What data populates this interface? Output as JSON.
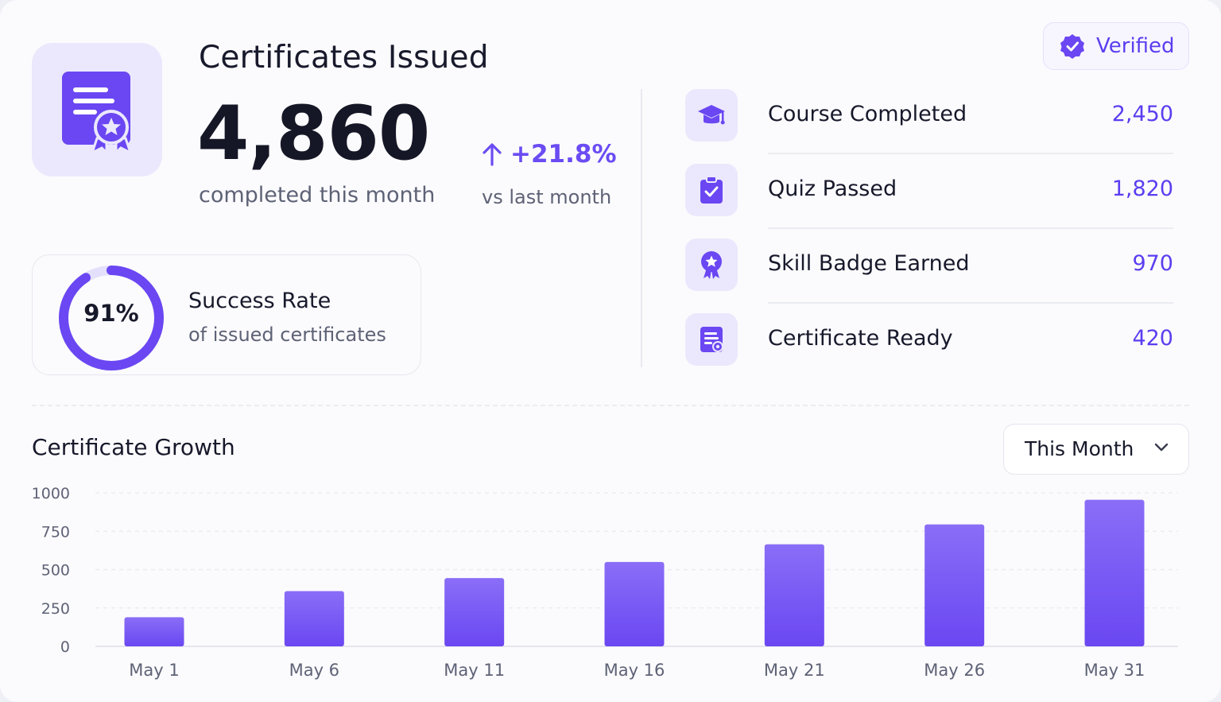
{
  "header": {
    "title": "Certificates Issued",
    "total": "4,860",
    "total_caption": "completed this month",
    "change": "+21.8%",
    "change_caption": "vs last month",
    "badge": "Verified"
  },
  "success": {
    "percent_label": "91%",
    "percent_value": 91,
    "title": "Success Rate",
    "subtitle": "of issued certificates"
  },
  "stats": [
    {
      "label": "Course Completed",
      "value": "2,450",
      "icon": "graduation-cap-icon"
    },
    {
      "label": "Quiz Passed",
      "value": "1,820",
      "icon": "clipboard-check-icon"
    },
    {
      "label": "Skill Badge Earned",
      "value": "970",
      "icon": "badge-star-icon"
    },
    {
      "label": "Certificate Ready",
      "value": "420",
      "icon": "certificate-doc-icon"
    }
  ],
  "chart_section": {
    "title": "Certificate Growth",
    "period_select": "This Month"
  },
  "colors": {
    "accent": "#6b4cf3",
    "accent_light": "#ebe8fd",
    "bar_top": "#8a6ef7",
    "bar_bottom": "#6a47f2"
  },
  "chart_data": {
    "type": "bar",
    "categories": [
      "May 1",
      "May 6",
      "May 11",
      "May 16",
      "May 21",
      "May 26",
      "May 31"
    ],
    "values": [
      190,
      360,
      445,
      550,
      665,
      795,
      955
    ],
    "y_ticks": [
      "0",
      "250",
      "500",
      "750",
      "1000"
    ],
    "ylim": [
      0,
      1000
    ],
    "grid": true
  }
}
